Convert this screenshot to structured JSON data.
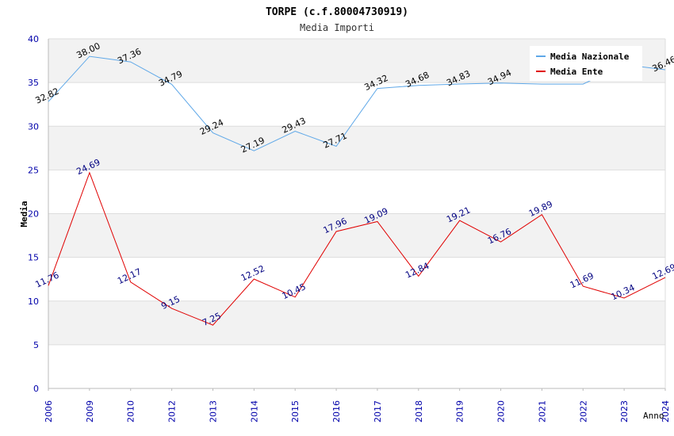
{
  "chart_data": {
    "type": "line",
    "title": "TORPE (c.f.80004730919)",
    "subtitle": "Media Importi",
    "xlabel": "Anno",
    "ylabel": "Media",
    "ylim": [
      0,
      40
    ],
    "yticks": [
      "0",
      "5",
      "10",
      "15",
      "20",
      "25",
      "30",
      "35",
      "40"
    ],
    "categories": [
      "2006",
      "2009",
      "2010",
      "2012",
      "2013",
      "2014",
      "2015",
      "2016",
      "2017",
      "2018",
      "2019",
      "2020",
      "2021",
      "2022",
      "2023",
      "2024"
    ],
    "series": [
      {
        "name": "Media Nazionale",
        "color": "#5fa8e8",
        "label_color": "#000000",
        "values": [
          32.82,
          38.0,
          37.36,
          34.79,
          29.24,
          27.19,
          29.43,
          27.71,
          34.32,
          34.68,
          34.83,
          34.94,
          34.82,
          34.82,
          37.05,
          36.46
        ],
        "labels": [
          "32.82",
          "38.00",
          "37.36",
          "34.79",
          "29.24",
          "27.19",
          "29.43",
          "27.71",
          "34.32",
          "34.68",
          "34.83",
          "34.94",
          "",
          "",
          "",
          "36.46"
        ]
      },
      {
        "name": "Media Ente",
        "color": "#e00000",
        "label_color": "#000080",
        "values": [
          11.76,
          24.69,
          12.17,
          9.15,
          7.25,
          12.52,
          10.45,
          17.96,
          19.09,
          12.84,
          19.21,
          16.76,
          19.89,
          11.69,
          10.34,
          12.69
        ],
        "labels": [
          "11.76",
          "24.69",
          "12.17",
          "9.15",
          "7.25",
          "12.52",
          "10.45",
          "17.96",
          "19.09",
          "12.84",
          "19.21",
          "16.76",
          "19.89",
          "11.69",
          "10.34",
          "12.69"
        ]
      }
    ],
    "grid": true,
    "legend": "top-right",
    "colors": {
      "band_light": "#f2f2f2",
      "gridline": "#dddddd",
      "axis": "#bbbbbb",
      "tick_text": "#0000aa",
      "title_text": "#000000",
      "subtitle_text": "#333333"
    }
  }
}
